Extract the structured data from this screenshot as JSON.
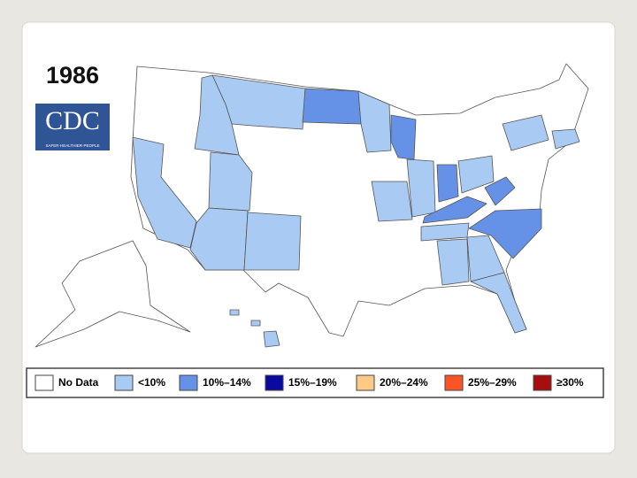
{
  "year": "1986",
  "logo": {
    "text": "CDC",
    "tagline": "SAFER·HEALTHIER·PEOPLE"
  },
  "legend": [
    {
      "label": "No Data",
      "color": "#ffffff"
    },
    {
      "label": "<10%",
      "color": "#a9cbf3"
    },
    {
      "label": "10%–14%",
      "color": "#6592e6"
    },
    {
      "label": "15%–19%",
      "color": "#0a0aa0"
    },
    {
      "label": "20%–24%",
      "color": "#ffca86"
    },
    {
      "label": "25%–29%",
      "color": "#fb5427"
    },
    {
      "label": "≥30%",
      "color": "#a50f0f"
    }
  ]
}
